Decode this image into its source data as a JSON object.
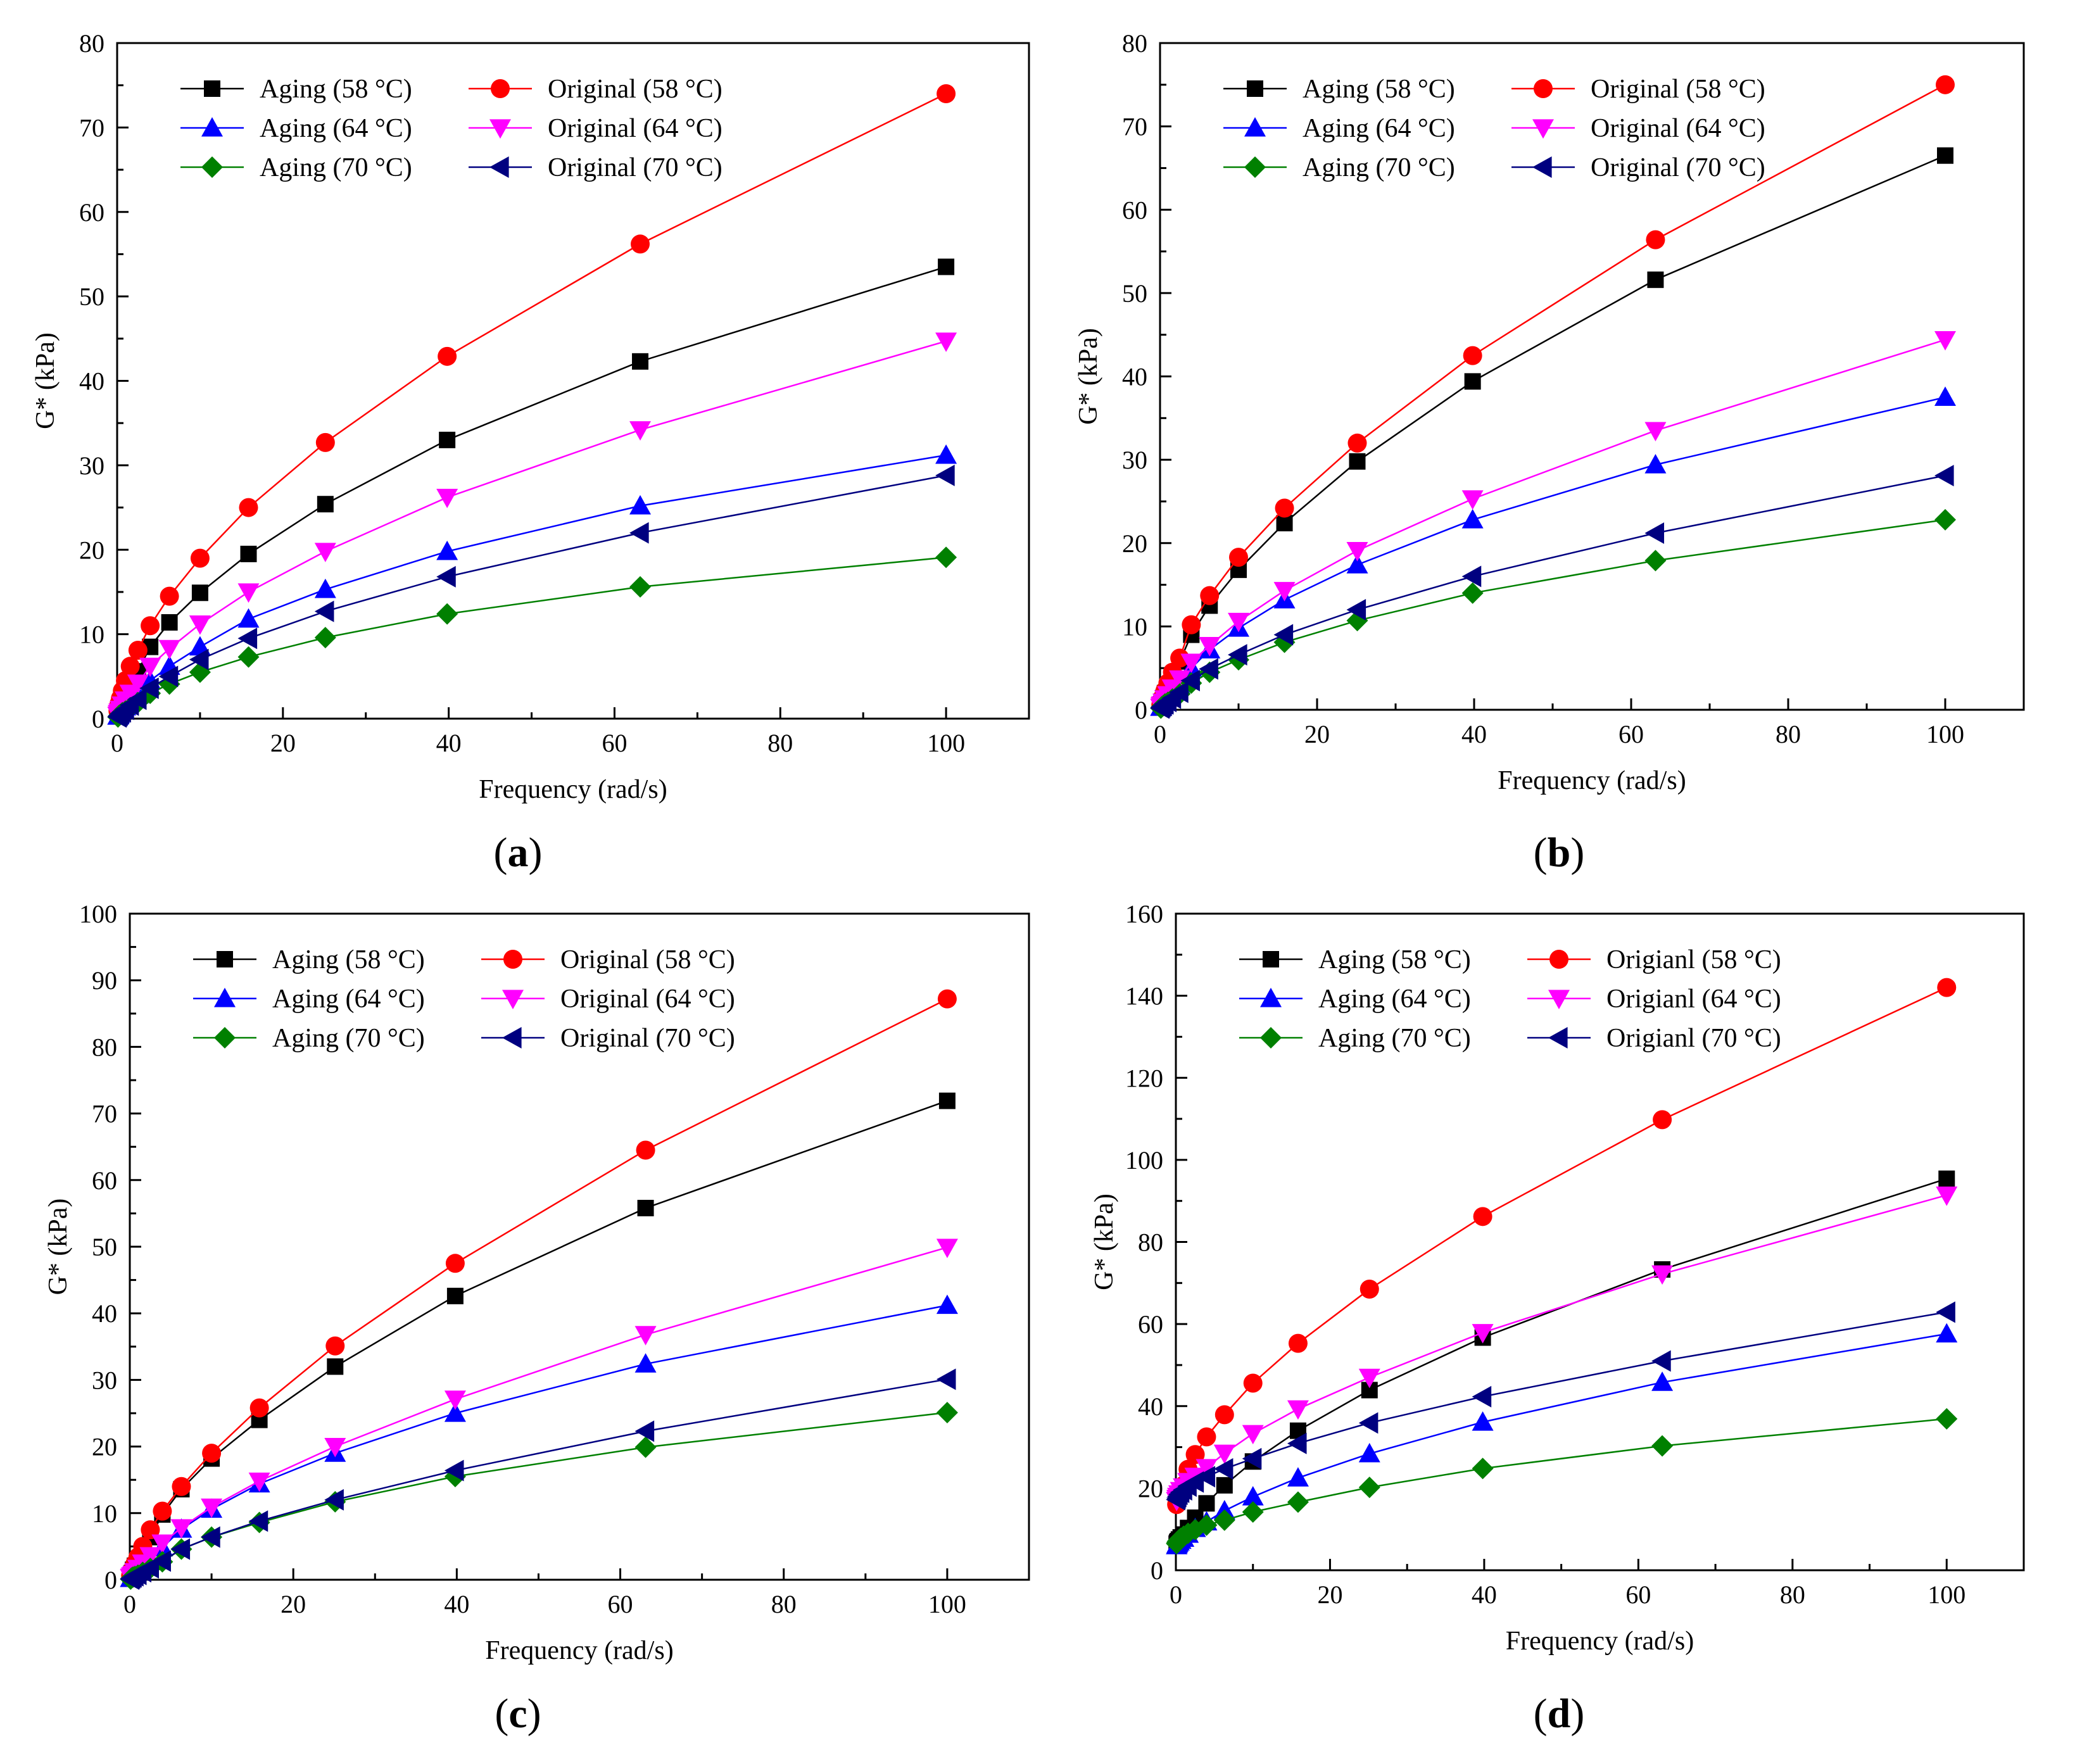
{
  "figure": {
    "panels": [
      "(a)",
      "(b)",
      "(c)",
      "(d)"
    ]
  },
  "series_colors": {
    "aging58": "#000000",
    "orig58": "#ff0000",
    "aging64": "#0000ff",
    "orig64": "#ff00ff",
    "aging70": "#008000",
    "orig70": "#000080"
  },
  "chart_data": [
    {
      "type": "line",
      "panel": "(a)",
      "caption_letter": "a",
      "xlabel": "Frequency (rad/s)",
      "ylabel": "G* (kPa)",
      "xlim": [
        0,
        110
      ],
      "ylim": [
        0,
        80
      ],
      "xticks": [
        0,
        20,
        40,
        60,
        80,
        100
      ],
      "yticks": [
        0,
        10,
        20,
        30,
        40,
        50,
        60,
        70,
        80
      ],
      "x": [
        0.1,
        0.16,
        0.25,
        0.4,
        0.63,
        1.0,
        1.58,
        2.51,
        3.98,
        6.31,
        10.0,
        15.85,
        25.12,
        39.81,
        63.1,
        100.0
      ],
      "series": [
        {
          "key": "aging58",
          "name": "Aging (58 °C)",
          "marker": "square",
          "values": [
            0.6,
            0.8,
            1.1,
            1.5,
            2.1,
            2.9,
            4.0,
            5.6,
            8.5,
            11.4,
            14.9,
            19.5,
            25.4,
            33.0,
            42.3,
            53.5
          ]
        },
        {
          "key": "orig58",
          "name": "Original (58 °C)",
          "marker": "circle",
          "values": [
            0.9,
            1.3,
            1.8,
            2.4,
            3.3,
            4.5,
            6.2,
            8.1,
            11.0,
            14.5,
            19.0,
            25.0,
            32.7,
            42.9,
            56.2,
            74.0
          ]
        },
        {
          "key": "aging64",
          "name": "Aging (64 °C)",
          "marker": "triangle-up",
          "values": [
            0.3,
            0.4,
            0.5,
            0.7,
            1.0,
            1.4,
            2.0,
            2.8,
            4.5,
            6.2,
            8.5,
            11.8,
            15.3,
            19.8,
            25.2,
            31.2
          ]
        },
        {
          "key": "orig64",
          "name": "Original (64 °C)",
          "marker": "triangle-down",
          "values": [
            0.4,
            0.6,
            0.8,
            1.1,
            1.6,
            2.2,
            3.0,
            4.2,
            6.2,
            8.3,
            11.2,
            15.0,
            19.8,
            26.2,
            34.2,
            44.7
          ]
        },
        {
          "key": "aging70",
          "name": "Aging (70 °C)",
          "marker": "diamond",
          "values": [
            0.2,
            0.3,
            0.4,
            0.5,
            0.7,
            0.9,
            1.3,
            1.9,
            3.0,
            4.1,
            5.5,
            7.3,
            9.6,
            12.4,
            15.6,
            19.1
          ]
        },
        {
          "key": "orig70",
          "name": "Original (70 °C)",
          "marker": "triangle-left",
          "values": [
            0.2,
            0.3,
            0.4,
            0.6,
            0.8,
            1.1,
            1.6,
            2.3,
            3.6,
            5.0,
            7.0,
            9.5,
            12.7,
            16.8,
            22.0,
            28.8
          ]
        }
      ]
    },
    {
      "type": "line",
      "panel": "(b)",
      "caption_letter": "b",
      "xlabel": "Frequency (rad/s)",
      "ylabel": "G* (kPa)",
      "xlim": [
        0,
        110
      ],
      "ylim": [
        0,
        80
      ],
      "xticks": [
        0,
        20,
        40,
        60,
        80,
        100
      ],
      "yticks": [
        0,
        10,
        20,
        30,
        40,
        50,
        60,
        70,
        80
      ],
      "x": [
        0.1,
        0.16,
        0.25,
        0.4,
        0.63,
        1.0,
        1.58,
        2.51,
        3.98,
        6.31,
        10.0,
        15.85,
        25.12,
        39.81,
        63.1,
        100.0
      ],
      "series": [
        {
          "key": "aging58",
          "name": "Aging (58 °C)",
          "marker": "square",
          "values": [
            0.5,
            0.7,
            1.0,
            1.4,
            2.0,
            2.8,
            4.0,
            5.8,
            9.0,
            12.5,
            16.8,
            22.4,
            29.8,
            39.4,
            51.6,
            66.5
          ]
        },
        {
          "key": "orig58",
          "name": "Original (58 °C)",
          "marker": "circle",
          "values": [
            0.6,
            0.8,
            1.2,
            1.6,
            2.3,
            3.2,
            4.5,
            6.2,
            10.2,
            13.7,
            18.3,
            24.2,
            32.0,
            42.5,
            56.4,
            75.0
          ]
        },
        {
          "key": "aging64",
          "name": "Aging (64 °C)",
          "marker": "triangle-up",
          "values": [
            0.3,
            0.4,
            0.5,
            0.7,
            1.0,
            1.4,
            2.0,
            2.9,
            5.0,
            7.2,
            9.8,
            13.2,
            17.4,
            22.8,
            29.4,
            37.5
          ]
        },
        {
          "key": "orig64",
          "name": "Original (64 °C)",
          "marker": "triangle-down",
          "values": [
            0.3,
            0.5,
            0.6,
            0.9,
            1.3,
            1.8,
            2.6,
            3.7,
            5.7,
            7.7,
            10.6,
            14.3,
            19.1,
            25.3,
            33.5,
            44.4
          ]
        },
        {
          "key": "aging70",
          "name": "Aging (70 °C)",
          "marker": "diamond",
          "values": [
            0.2,
            0.3,
            0.4,
            0.5,
            0.7,
            0.9,
            1.3,
            1.9,
            3.2,
            4.5,
            6.0,
            8.1,
            10.7,
            14.0,
            17.9,
            22.8
          ]
        },
        {
          "key": "orig70",
          "name": "Original (70 °C)",
          "marker": "triangle-left",
          "values": [
            0.2,
            0.3,
            0.4,
            0.5,
            0.7,
            1.0,
            1.4,
            2.1,
            3.5,
            4.9,
            6.6,
            9.0,
            12.0,
            16.0,
            21.2,
            28.1
          ]
        }
      ]
    },
    {
      "type": "line",
      "panel": "(c)",
      "caption_letter": "c",
      "xlabel": "Frequency (rad/s)",
      "ylabel": "G* (kPa)",
      "xlim": [
        0,
        110
      ],
      "ylim": [
        0,
        100
      ],
      "xticks": [
        0,
        20,
        40,
        60,
        80,
        100
      ],
      "yticks": [
        0,
        10,
        20,
        30,
        40,
        50,
        60,
        70,
        80,
        90,
        100
      ],
      "x": [
        0.1,
        0.16,
        0.25,
        0.4,
        0.63,
        1.0,
        1.58,
        2.51,
        3.98,
        6.31,
        10.0,
        15.85,
        25.12,
        39.81,
        63.1,
        100.0
      ],
      "series": [
        {
          "key": "aging58",
          "name": "Aging (58 °C)",
          "marker": "square",
          "values": [
            0.5,
            0.7,
            1.0,
            1.5,
            2.1,
            3.0,
            4.3,
            6.4,
            9.8,
            13.6,
            18.2,
            24.0,
            32.0,
            42.6,
            55.8,
            71.9
          ]
        },
        {
          "key": "orig58",
          "name": "Original (58 °C)",
          "marker": "circle",
          "values": [
            0.6,
            0.8,
            1.2,
            1.7,
            2.4,
            3.4,
            5.0,
            7.5,
            10.3,
            14.0,
            19.0,
            25.8,
            35.1,
            47.5,
            64.5,
            87.2
          ]
        },
        {
          "key": "aging64",
          "name": "Aging (64 °C)",
          "marker": "triangle-up",
          "values": [
            0.2,
            0.3,
            0.5,
            0.7,
            1.0,
            1.4,
            2.1,
            3.1,
            4.8,
            7.6,
            10.6,
            14.4,
            19.0,
            25.0,
            32.4,
            41.2
          ]
        },
        {
          "key": "orig64",
          "name": "Original (64 °C)",
          "marker": "triangle-down",
          "values": [
            0.3,
            0.4,
            0.6,
            0.8,
            1.2,
            1.7,
            2.5,
            3.6,
            5.5,
            7.8,
            10.9,
            14.8,
            20.0,
            27.1,
            36.8,
            49.9
          ]
        },
        {
          "key": "aging70",
          "name": "Aging (70 °C)",
          "marker": "diamond",
          "values": [
            0.1,
            0.2,
            0.3,
            0.4,
            0.5,
            0.7,
            1.1,
            1.7,
            2.7,
            4.6,
            6.4,
            8.6,
            11.7,
            15.5,
            19.9,
            25.1
          ]
        },
        {
          "key": "orig70",
          "name": "Original (70 °C)",
          "marker": "triangle-left",
          "values": [
            0.1,
            0.2,
            0.3,
            0.4,
            0.6,
            0.8,
            1.2,
            1.8,
            2.8,
            4.6,
            6.4,
            8.8,
            12.0,
            16.4,
            22.3,
            30.1
          ]
        }
      ]
    },
    {
      "type": "line",
      "panel": "(d)",
      "caption_letter": "d",
      "xlabel": "Frequency (rad/s)",
      "ylabel": "G* (kPa)",
      "xlim": [
        0,
        110
      ],
      "ylim": [
        0,
        160
      ],
      "xticks": [
        0,
        20,
        40,
        60,
        80,
        100
      ],
      "yticks": [
        0,
        20,
        40,
        60,
        80,
        100,
        120,
        140,
        160
      ],
      "x": [
        0.1,
        0.16,
        0.25,
        0.4,
        0.63,
        1.0,
        1.58,
        2.51,
        3.98,
        6.31,
        10.0,
        15.85,
        25.12,
        39.81,
        63.1,
        100.0
      ],
      "series": [
        {
          "key": "aging58",
          "name": "Aging (58 °C)",
          "marker": "square",
          "values": [
            6.5,
            6.8,
            7.1,
            7.5,
            8.0,
            8.7,
            10.3,
            12.8,
            16.3,
            20.7,
            26.5,
            34.0,
            43.9,
            56.7,
            73.3,
            95.4
          ]
        },
        {
          "key": "orig58",
          "name": "Origianl (58 °C)",
          "marker": "circle",
          "values": [
            16.0,
            16.6,
            17.3,
            18.1,
            19.3,
            20.7,
            24.6,
            28.2,
            32.5,
            37.9,
            45.6,
            55.3,
            68.5,
            86.2,
            109.8,
            142.0
          ]
        },
        {
          "key": "aging64",
          "name": "Aging (64 °C)",
          "marker": "triangle-up",
          "values": [
            6.0,
            6.3,
            6.6,
            6.9,
            7.3,
            7.8,
            8.8,
            10.2,
            11.8,
            14.5,
            17.9,
            22.5,
            28.4,
            36.1,
            45.8,
            57.6
          ]
        },
        {
          "key": "orig64",
          "name": "Origianl (64 °C)",
          "marker": "triangle-down",
          "values": [
            17.0,
            17.5,
            18.0,
            18.6,
            19.4,
            20.3,
            21.6,
            22.9,
            25.0,
            28.5,
            33.3,
            39.3,
            47.0,
            57.9,
            72.2,
            91.4
          ]
        },
        {
          "key": "aging70",
          "name": "Aging (70 °C)",
          "marker": "diamond",
          "values": [
            6.5,
            6.8,
            7.1,
            7.4,
            7.8,
            8.3,
            9.0,
            9.9,
            11.0,
            12.2,
            14.2,
            16.6,
            20.2,
            24.8,
            30.3,
            36.9
          ]
        },
        {
          "key": "orig70",
          "name": "Origianl (70 °C)",
          "marker": "triangle-left",
          "values": [
            17.2,
            17.6,
            18.0,
            18.5,
            19.0,
            19.6,
            20.5,
            21.5,
            22.8,
            24.7,
            27.2,
            30.9,
            35.9,
            42.3,
            51.0,
            62.9
          ]
        }
      ]
    }
  ]
}
